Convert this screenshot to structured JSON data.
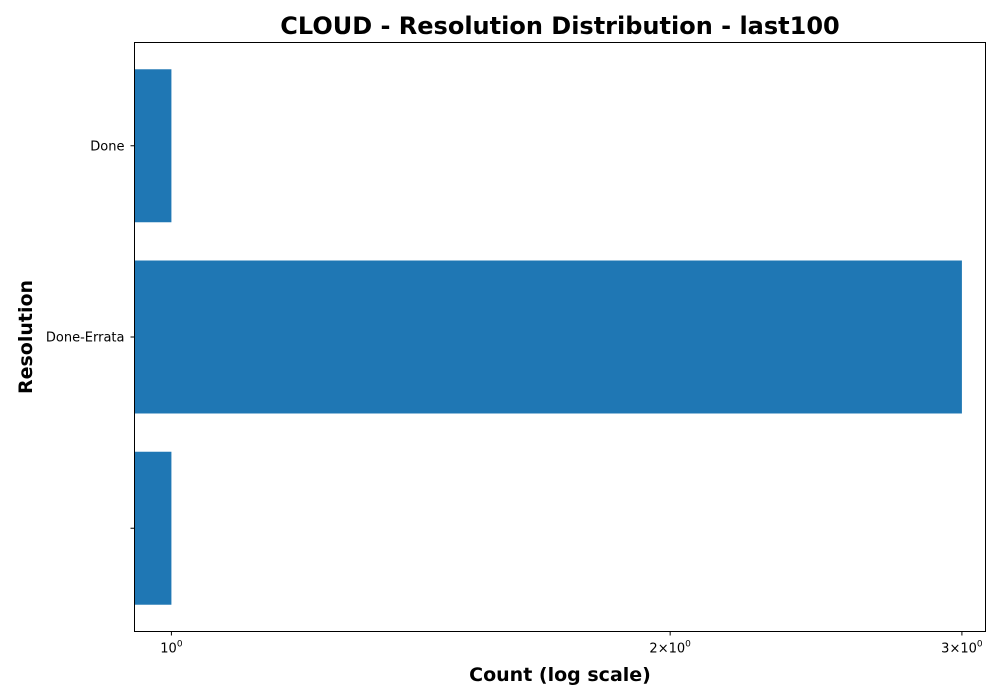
{
  "chart_data": {
    "type": "bar",
    "orientation": "horizontal",
    "title": "CLOUD - Resolution Distribution - last100",
    "xlabel": "Count (log scale)",
    "ylabel": "Resolution",
    "x_scale": "log",
    "xlim": [
      0.95,
      3.1
    ],
    "categories": [
      "Done",
      "Done-Errata",
      ""
    ],
    "values": [
      1,
      3,
      1
    ],
    "x_ticks": [
      {
        "value": 1,
        "base": "10",
        "exp": "0"
      },
      {
        "value": 2,
        "base": "2×10",
        "exp": "0"
      },
      {
        "value": 3,
        "base": "3×10",
        "exp": "0"
      }
    ],
    "grid": false,
    "colors": {
      "bar": "#1f77b4"
    }
  }
}
